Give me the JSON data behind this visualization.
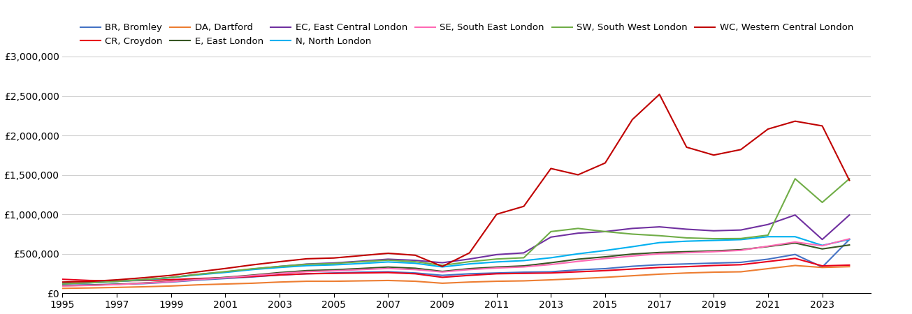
{
  "years": [
    1995,
    1996,
    1997,
    1998,
    1999,
    2000,
    2001,
    2002,
    2003,
    2004,
    2005,
    2006,
    2007,
    2008,
    2009,
    2010,
    2011,
    2012,
    2013,
    2014,
    2015,
    2016,
    2017,
    2018,
    2019,
    2020,
    2021,
    2022,
    2023,
    2024
  ],
  "series": [
    {
      "label": "BR, Bromley",
      "color": "#4472c4",
      "values": [
        100000,
        105000,
        112000,
        120000,
        140000,
        165000,
        185000,
        205000,
        230000,
        245000,
        255000,
        265000,
        270000,
        255000,
        225000,
        245000,
        255000,
        265000,
        270000,
        295000,
        310000,
        340000,
        360000,
        370000,
        380000,
        390000,
        430000,
        490000,
        330000,
        680000
      ]
    },
    {
      "label": "CR, Croydon",
      "color": "#e8001c",
      "values": [
        175000,
        160000,
        155000,
        160000,
        170000,
        185000,
        195000,
        210000,
        230000,
        245000,
        250000,
        255000,
        260000,
        245000,
        200000,
        225000,
        245000,
        250000,
        255000,
        270000,
        285000,
        305000,
        325000,
        335000,
        350000,
        360000,
        400000,
        440000,
        345000,
        355000
      ]
    },
    {
      "label": "DA, Dartford",
      "color": "#ed7d31",
      "values": [
        60000,
        65000,
        72000,
        80000,
        90000,
        105000,
        115000,
        125000,
        140000,
        150000,
        150000,
        155000,
        160000,
        150000,
        125000,
        140000,
        150000,
        155000,
        168000,
        183000,
        200000,
        220000,
        240000,
        255000,
        265000,
        270000,
        310000,
        350000,
        325000,
        335000
      ]
    },
    {
      "label": "E, East London",
      "color": "#375623",
      "values": [
        95000,
        100000,
        112000,
        128000,
        148000,
        175000,
        200000,
        228000,
        260000,
        285000,
        295000,
        312000,
        330000,
        315000,
        275000,
        310000,
        330000,
        345000,
        385000,
        430000,
        460000,
        495000,
        515000,
        525000,
        535000,
        550000,
        590000,
        635000,
        560000,
        610000
      ]
    },
    {
      "label": "EC, East Central London",
      "color": "#7030a0",
      "values": [
        120000,
        132000,
        148000,
        170000,
        198000,
        238000,
        268000,
        305000,
        338000,
        368000,
        382000,
        405000,
        430000,
        415000,
        385000,
        432000,
        488000,
        510000,
        710000,
        760000,
        780000,
        820000,
        840000,
        810000,
        790000,
        800000,
        870000,
        990000,
        680000,
        990000
      ]
    },
    {
      "label": "N, North London",
      "color": "#00b0f0",
      "values": [
        120000,
        130000,
        148000,
        168000,
        195000,
        232000,
        262000,
        298000,
        325000,
        348000,
        358000,
        375000,
        395000,
        378000,
        332000,
        370000,
        395000,
        412000,
        448000,
        498000,
        540000,
        588000,
        640000,
        658000,
        668000,
        678000,
        715000,
        715000,
        605000,
        680000
      ]
    },
    {
      "label": "SE, South East London",
      "color": "#ff69b4",
      "values": [
        90000,
        98000,
        108000,
        125000,
        145000,
        172000,
        195000,
        222000,
        250000,
        272000,
        282000,
        298000,
        312000,
        298000,
        268000,
        298000,
        318000,
        332000,
        362000,
        402000,
        438000,
        470000,
        498000,
        512000,
        525000,
        542000,
        595000,
        648000,
        600000,
        688000
      ]
    },
    {
      "label": "SW, South West London",
      "color": "#70ad47",
      "values": [
        118000,
        130000,
        148000,
        172000,
        198000,
        238000,
        272000,
        308000,
        338000,
        365000,
        375000,
        398000,
        418000,
        398000,
        352000,
        398000,
        432000,
        448000,
        780000,
        820000,
        780000,
        748000,
        728000,
        700000,
        690000,
        692000,
        735000,
        1450000,
        1150000,
        1450000
      ]
    },
    {
      "label": "WC, Western Central London",
      "color": "#c00000",
      "values": [
        140000,
        148000,
        168000,
        195000,
        225000,
        270000,
        312000,
        358000,
        398000,
        435000,
        445000,
        475000,
        505000,
        480000,
        338000,
        510000,
        1000000,
        1100000,
        1580000,
        1500000,
        1650000,
        2200000,
        2520000,
        1850000,
        1750000,
        1820000,
        2080000,
        2180000,
        2120000,
        1430000
      ]
    }
  ],
  "ylim": [
    0,
    3000000
  ],
  "yticks": [
    0,
    500000,
    1000000,
    1500000,
    2000000,
    2500000,
    3000000
  ],
  "ytick_labels": [
    "£0",
    "£500,000",
    "£1,000,000",
    "£1,500,000",
    "£2,000,000",
    "£2,500,000",
    "£3,000,000"
  ],
  "xtick_years": [
    1995,
    1997,
    1999,
    2001,
    2003,
    2005,
    2007,
    2009,
    2011,
    2013,
    2015,
    2017,
    2019,
    2021,
    2023
  ],
  "background_color": "#ffffff",
  "grid_color": "#d0d0d0",
  "legend_row1": [
    "BR, Bromley",
    "CR, Croydon",
    "DA, Dartford",
    "E, East London",
    "EC, East Central London",
    "N, North London"
  ],
  "legend_row2": [
    "SE, South East London",
    "SW, South West London",
    "WC, Western Central London"
  ]
}
